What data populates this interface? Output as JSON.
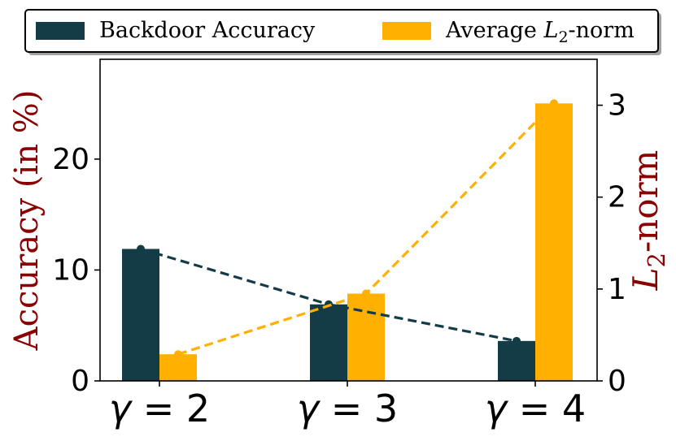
{
  "chart_data": {
    "type": "bar",
    "categories": [
      "γ = 2",
      "γ = 3",
      "γ = 4"
    ],
    "category_parts": [
      {
        "sym": "γ",
        "rest": " = 2"
      },
      {
        "sym": "γ",
        "rest": " = 3"
      },
      {
        "sym": "γ",
        "rest": " = 4"
      }
    ],
    "series": [
      {
        "name": "Backdoor Accuracy",
        "axis": "left",
        "values": [
          11.9,
          6.9,
          3.6
        ],
        "color": "#143c46"
      },
      {
        "name": "Average L2-norm",
        "name_parts": {
          "prefix": "Average ",
          "sym": "L",
          "sub": "2",
          "suffix": "-norm"
        },
        "axis": "right",
        "values": [
          0.29,
          0.95,
          3.02
        ],
        "color": "#ffb000"
      }
    ],
    "ylabel_left": "Accuracy (in %)",
    "ylabel_right": "L2-norm",
    "ylabel_right_parts": {
      "sym": "L",
      "sub": "2",
      "suffix": "-norm"
    },
    "ylim_left": [
      0,
      29
    ],
    "ylim_right": [
      0,
      3.5
    ],
    "yticks_left": [
      0,
      10,
      20
    ],
    "yticks_right": [
      0,
      1,
      2,
      3
    ],
    "label_color": "#8b0000",
    "grid": false,
    "legend_position": "top"
  }
}
